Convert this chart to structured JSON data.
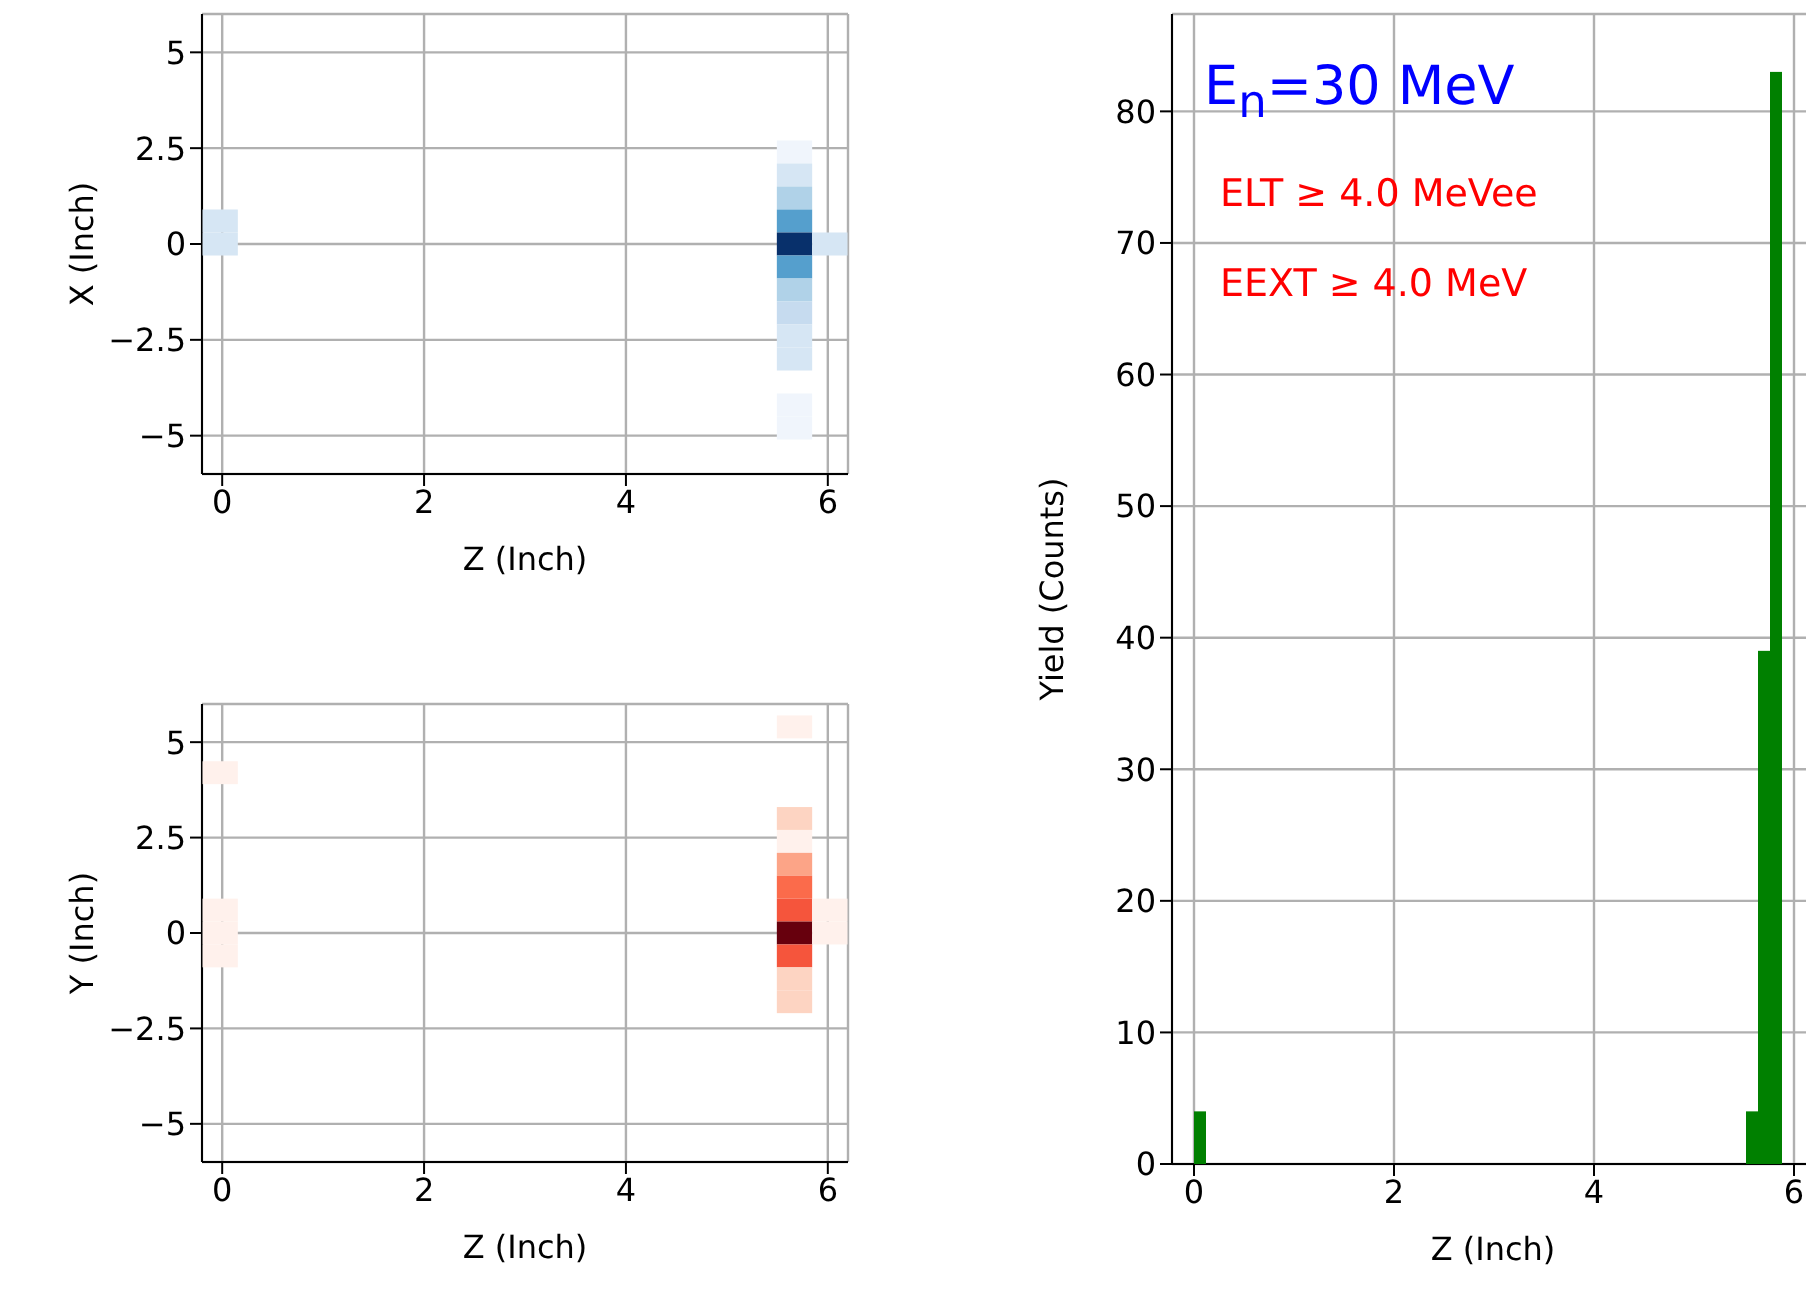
{
  "chart_data": [
    {
      "type": "scatter",
      "marker": "square",
      "xlabel": "Z (Inch)",
      "ylabel": "X (Inch)",
      "x": [
        5.67,
        5.67,
        5.67,
        -0.02,
        5.67,
        -0.02,
        5.67,
        6.02,
        5.67,
        5.67,
        5.67,
        5.67,
        5.67,
        5.67,
        5.67
      ],
      "values": [
        2.4,
        1.8,
        1.2,
        0.6,
        0.6,
        0,
        0,
        0,
        -0.6,
        -1.2,
        -1.8,
        -2.4,
        -3.0,
        -4.2,
        -4.8
      ],
      "colors": [
        "#f0f5fc",
        "#d6e6f4",
        "#b0d2e8",
        "#d6e6f4",
        "#559fcd",
        "#d6e6f4",
        "#08306b",
        "#d6e6f4",
        "#559fcd",
        "#b0d2e8",
        "#c6dbef",
        "#d6e6f4",
        "#d6e6f4",
        "#f0f5fc",
        "#f0f5fc"
      ],
      "xlim": [
        -0.2,
        6.2
      ],
      "xticks": [
        0,
        2,
        4,
        6
      ],
      "ylim": [
        -6,
        6
      ],
      "yticks": [
        -5.0,
        -2.5,
        0.0,
        2.5,
        5.0
      ],
      "grid": true
    },
    {
      "type": "scatter",
      "marker": "square",
      "xlabel": "Z (Inch)",
      "ylabel": "Y (Inch)",
      "x": [
        5.67,
        -0.02,
        5.67,
        5.67,
        5.67,
        5.67,
        -0.02,
        5.67,
        6.02,
        -0.02,
        5.67,
        6.02,
        -0.02,
        5.67,
        5.67,
        5.67
      ],
      "values": [
        5.4,
        4.2,
        3.0,
        2.4,
        1.8,
        1.2,
        0.6,
        0.6,
        0.6,
        0,
        0,
        0,
        -0.6,
        -0.6,
        -1.2,
        -1.8
      ],
      "colors": [
        "#fff1ec",
        "#fff1ec",
        "#fdd4c2",
        "#fff1ec",
        "#fca487",
        "#fb6b4b",
        "#fff1ec",
        "#f5553c",
        "#fff1ec",
        "#fff1ec",
        "#67000d",
        "#fff1ec",
        "#fff1ec",
        "#f5553c",
        "#fdd4c2",
        "#fdd4c2"
      ],
      "xlim": [
        -0.2,
        6.2
      ],
      "xticks": [
        0,
        2,
        4,
        6
      ],
      "ylim": [
        -6,
        6
      ],
      "yticks": [
        -5.0,
        -2.5,
        0.0,
        2.5,
        5.0
      ],
      "grid": true
    },
    {
      "type": "histogram",
      "xlabel": "Z (Inch)",
      "ylabel": "Yield (Counts)",
      "color": "#008000",
      "bins": [
        0,
        0.12,
        5.52,
        5.64,
        5.76,
        5.88
      ],
      "values": [
        4,
        0,
        4,
        39,
        83
      ],
      "xlim": [
        -0.22,
        6.2
      ],
      "xticks": [
        0,
        2,
        4,
        6
      ],
      "ylim": [
        0,
        87.4
      ],
      "yticks": [
        0,
        10,
        20,
        30,
        40,
        50,
        60,
        70,
        80
      ],
      "grid": true,
      "annotations": [
        "E$_{n}$=30 MeV",
        "ELT ≥ 4.0 MeVee",
        "EEXT ≥ 4.0 MeV"
      ]
    }
  ]
}
